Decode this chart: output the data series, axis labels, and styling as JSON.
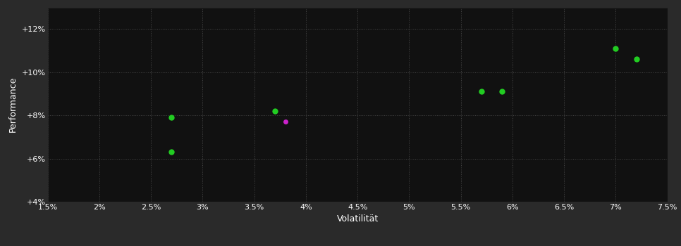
{
  "background_color": "#2a2a2a",
  "plot_bg_color": "#111111",
  "grid_color": "#555555",
  "text_color": "#ffffff",
  "xlabel": "Volatilität",
  "ylabel": "Performance",
  "xlim": [
    0.015,
    0.075
  ],
  "ylim": [
    0.04,
    0.13
  ],
  "xticks": [
    0.015,
    0.02,
    0.025,
    0.03,
    0.035,
    0.04,
    0.045,
    0.05,
    0.055,
    0.06,
    0.065,
    0.07,
    0.075
  ],
  "xtick_labels": [
    "1.5%",
    "2%",
    "2.5%",
    "3%",
    "3.5%",
    "4%",
    "4.5%",
    "5%",
    "5.5%",
    "6%",
    "6.5%",
    "7%",
    "7.5%"
  ],
  "yticks": [
    0.04,
    0.06,
    0.08,
    0.1,
    0.12
  ],
  "ytick_labels": [
    "+4%",
    "+6%",
    "+8%",
    "+10%",
    "+12%"
  ],
  "green_points": [
    [
      0.027,
      0.079
    ],
    [
      0.027,
      0.063
    ],
    [
      0.037,
      0.082
    ],
    [
      0.057,
      0.091
    ],
    [
      0.059,
      0.091
    ],
    [
      0.07,
      0.111
    ],
    [
      0.072,
      0.106
    ]
  ],
  "magenta_points": [
    [
      0.038,
      0.077
    ]
  ],
  "green_color": "#22cc22",
  "magenta_color": "#cc22cc",
  "marker_size": 6,
  "font_size_labels": 9,
  "font_size_ticks": 8
}
